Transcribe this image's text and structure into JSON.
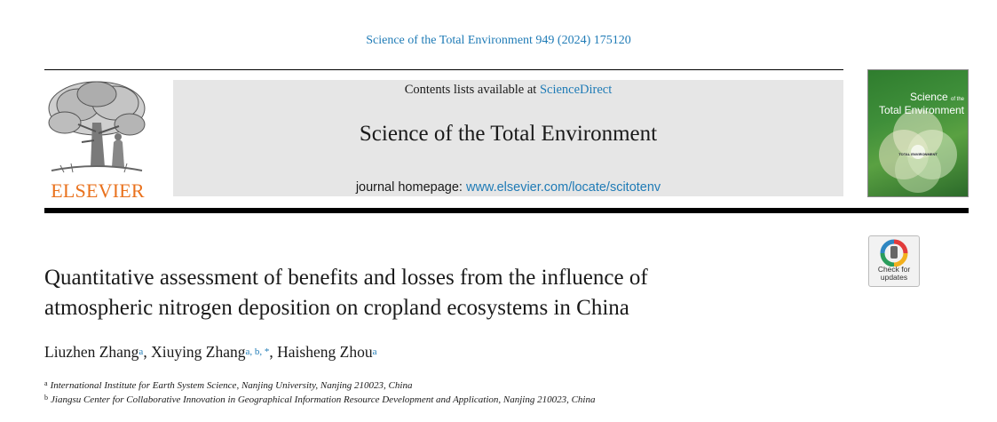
{
  "citation": "Science of the Total Environment 949 (2024) 175120",
  "publisher_logo": {
    "icon": "elsevier-tree-icon",
    "wordmark": "ELSEVIER",
    "color": "#e9711c"
  },
  "banner": {
    "contents_prefix": "Contents lists available at ",
    "contents_link": "ScienceDirect",
    "journal_title": "Science of the Total Environment",
    "homepage_prefix": "journal homepage: ",
    "homepage_link": "www.elsevier.com/locate/scitotenv"
  },
  "cover": {
    "line1": "Science",
    "line1_small": "of the",
    "line2": "Total Environment",
    "tag": "TOTAL ENVIRONMENT"
  },
  "check_updates": {
    "line1": "Check for",
    "line2": "updates"
  },
  "article": {
    "title_line1": "Quantitative assessment of benefits and losses from the influence of",
    "title_line2": "atmospheric nitrogen deposition on cropland ecosystems in China",
    "authors": [
      {
        "name": "Liuzhen Zhang",
        "sup": "a",
        "sep": ", "
      },
      {
        "name": "Xiuying Zhang",
        "sup": "a, b, *",
        "sep": ", "
      },
      {
        "name": "Haisheng Zhou",
        "sup": "a",
        "sep": ""
      }
    ],
    "affiliations": [
      {
        "mark": "a",
        "text": "International Institute for Earth System Science, Nanjing University, Nanjing 210023, China"
      },
      {
        "mark": "b",
        "text": "Jiangsu Center for Collaborative Innovation in Geographical Information Resource Development and Application, Nanjing 210023, China"
      }
    ]
  },
  "colors": {
    "link": "#1f7bb6",
    "banner_bg": "#e6e6e6",
    "elsevier_orange": "#e9711c"
  }
}
